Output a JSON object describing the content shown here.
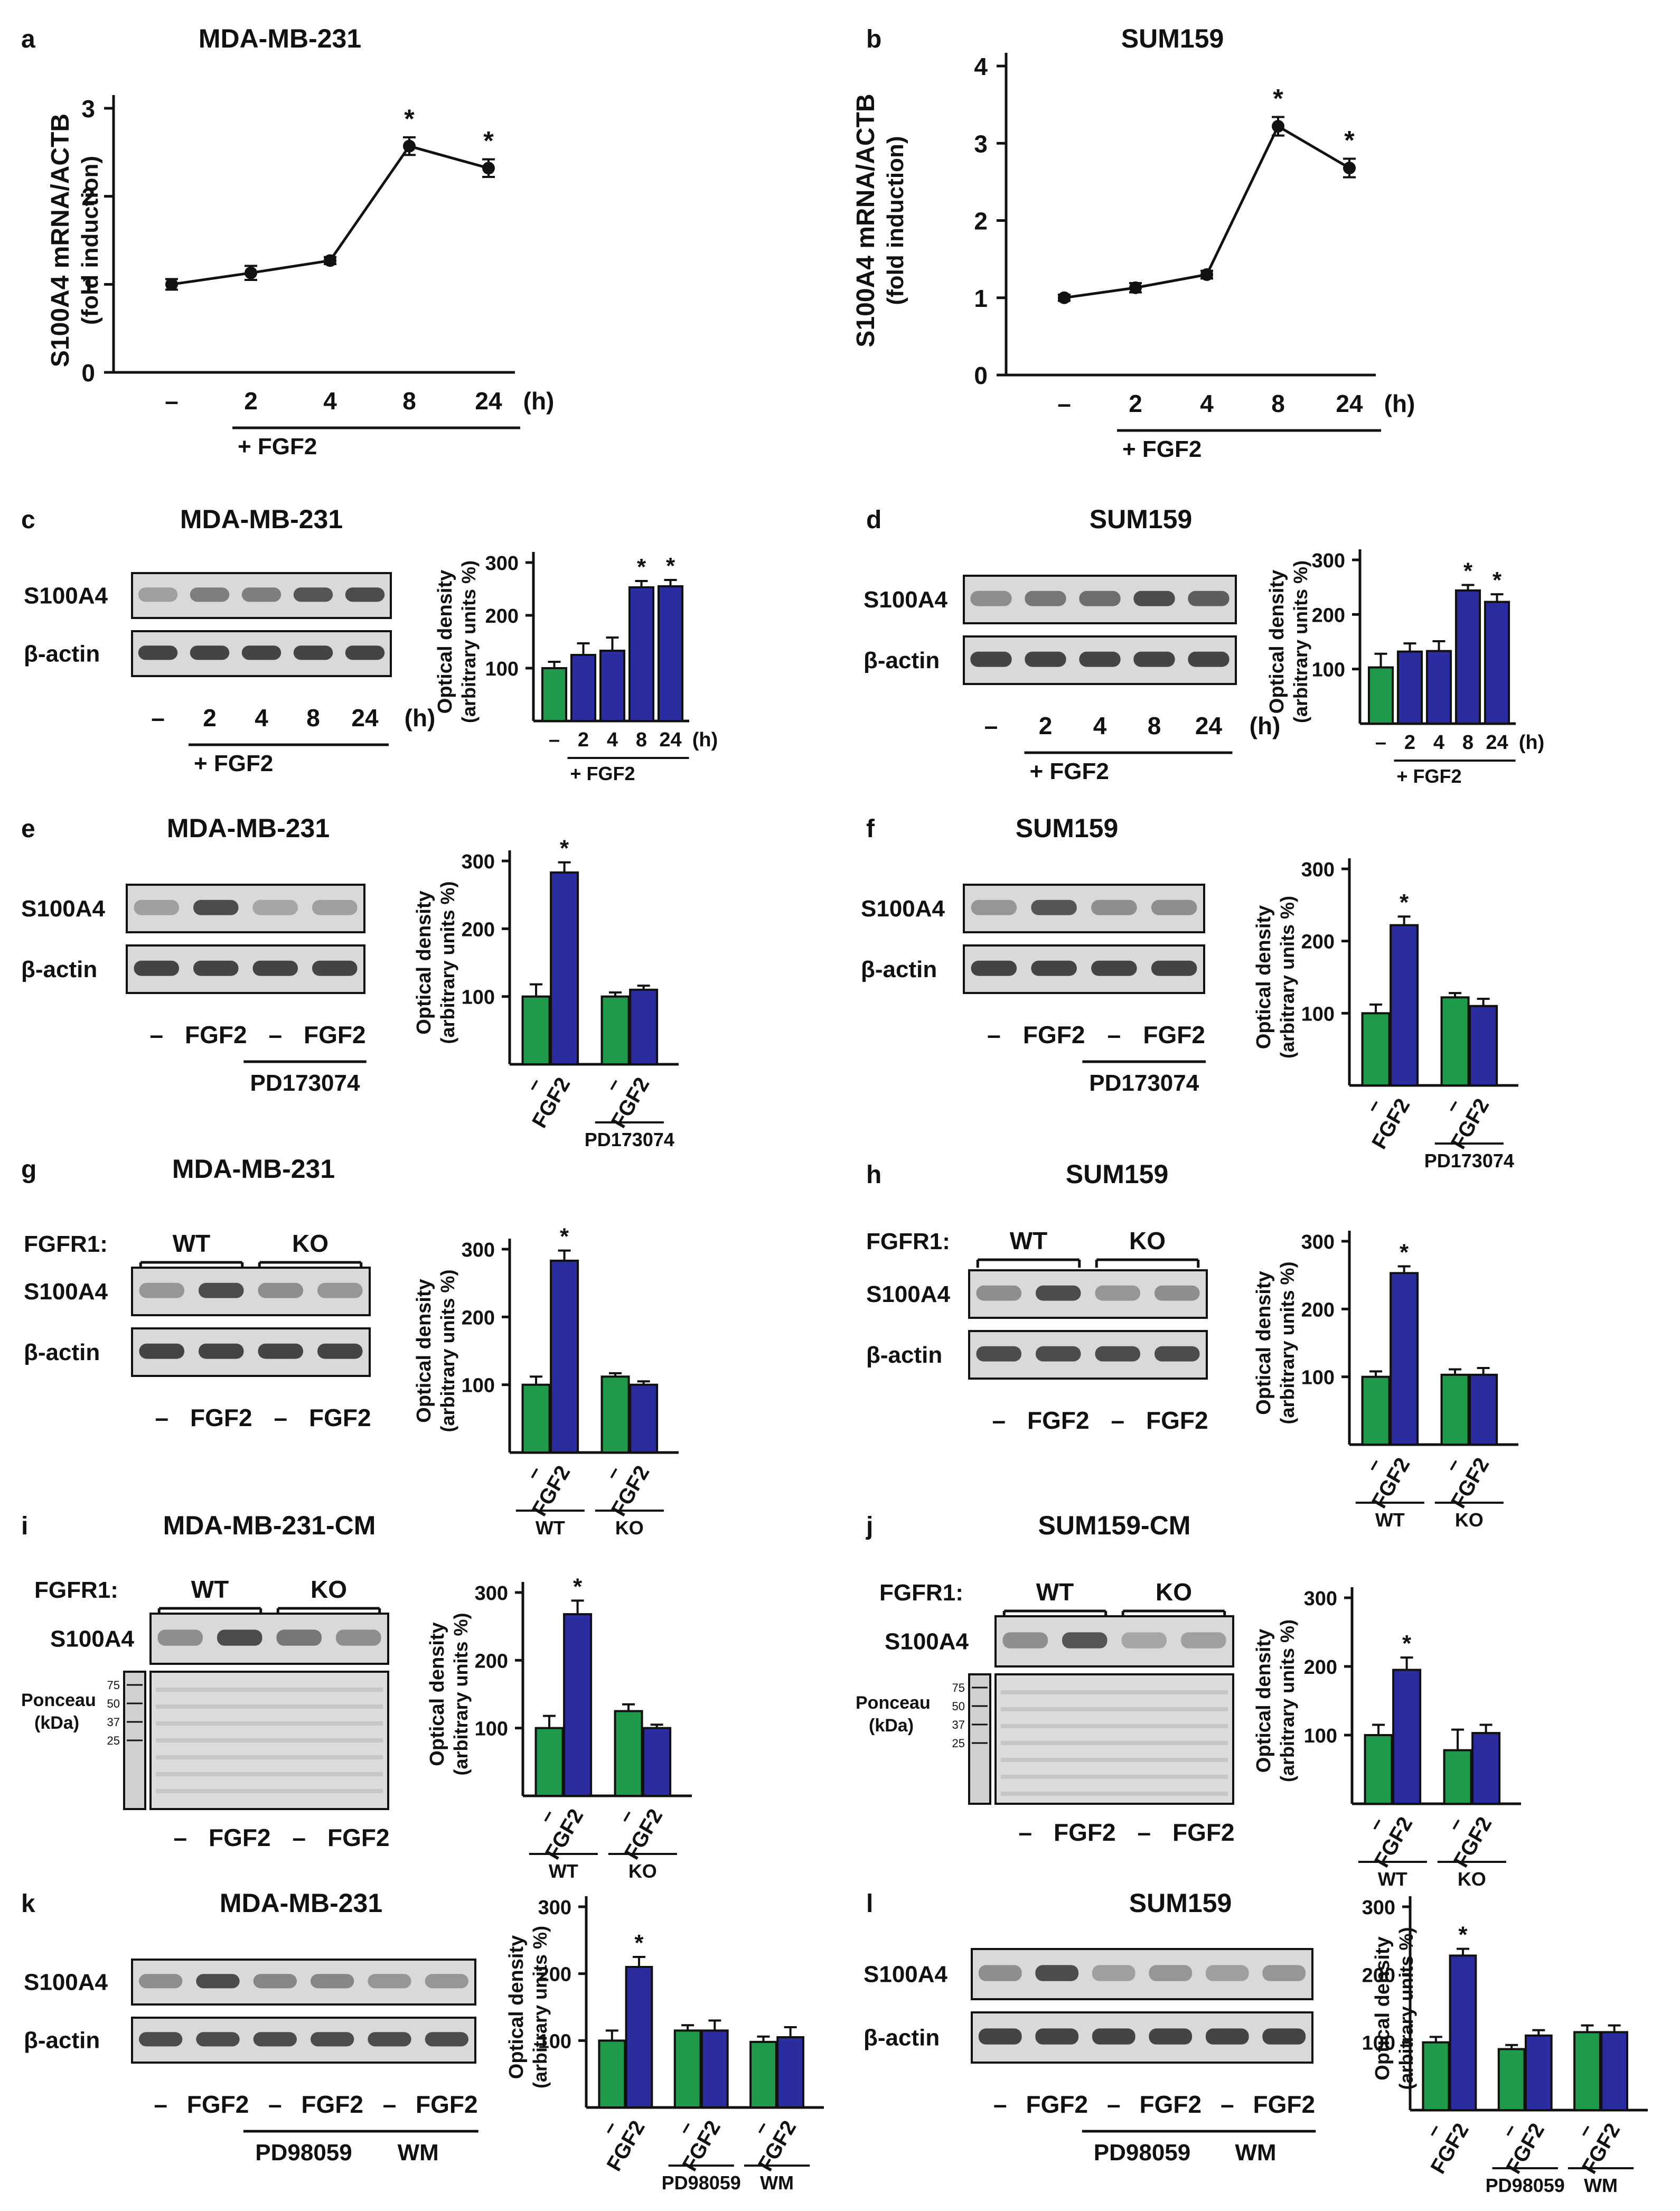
{
  "figure": {
    "colors": {
      "control": "#1f9a4a",
      "fgf2": "#2b2ca0",
      "axis": "#111111",
      "blot_bg": "#d9d9d9",
      "band": "#333333"
    },
    "time_axis_unit": "(h)",
    "fgf2_label": "+ FGF2",
    "dash": "–"
  },
  "chart_data": [
    {
      "panel": "a",
      "type": "line",
      "title": "MDA-MB-231",
      "ylabel": "S100A4 mRNA/ACTB",
      "ylabel2": "(fold induction)",
      "categories": [
        "–",
        "2",
        "4",
        "8",
        "24"
      ],
      "values": [
        1.0,
        1.13,
        1.27,
        2.57,
        2.32
      ],
      "errors": [
        0.06,
        0.08,
        0.04,
        0.1,
        0.1
      ],
      "significant": [
        false,
        false,
        false,
        true,
        true
      ],
      "ylim": [
        0,
        3
      ],
      "yticks": [
        0,
        1,
        2,
        3
      ],
      "group_label": "+ FGF2",
      "unit": "(h)"
    },
    {
      "panel": "b",
      "type": "line",
      "title": "SUM159",
      "ylabel": "S100A4 mRNA/ACTB",
      "ylabel2": "(fold induction)",
      "categories": [
        "–",
        "2",
        "4",
        "8",
        "24"
      ],
      "values": [
        1.0,
        1.13,
        1.3,
        3.22,
        2.68
      ],
      "errors": [
        0.04,
        0.06,
        0.05,
        0.12,
        0.12
      ],
      "significant": [
        false,
        false,
        false,
        true,
        true
      ],
      "ylim": [
        0,
        4
      ],
      "yticks": [
        0,
        1,
        2,
        3,
        4
      ],
      "group_label": "+ FGF2",
      "unit": "(h)"
    },
    {
      "panel": "c",
      "type": "bar",
      "title": "MDA-MB-231",
      "ylabel": "Optical density",
      "ylabel2": "(arbitrary units %)",
      "categories": [
        "–",
        "2",
        "4",
        "8",
        "24"
      ],
      "values": [
        100,
        125,
        133,
        253,
        255
      ],
      "errors": [
        12,
        22,
        25,
        12,
        12
      ],
      "treated": [
        false,
        true,
        true,
        true,
        true
      ],
      "significant": [
        false,
        false,
        false,
        true,
        true
      ],
      "ylim": [
        0,
        300
      ],
      "yticks": [
        100,
        200,
        300
      ],
      "unit": "(h)",
      "group_label": "+ FGF2"
    },
    {
      "panel": "d",
      "type": "bar",
      "title": "SUM159",
      "ylabel": "Optical density",
      "ylabel2": "(arbitrary units %)",
      "categories": [
        "–",
        "2",
        "4",
        "8",
        "24"
      ],
      "values": [
        103,
        132,
        133,
        244,
        223
      ],
      "errors": [
        25,
        15,
        18,
        10,
        14
      ],
      "treated": [
        false,
        true,
        true,
        true,
        true
      ],
      "significant": [
        false,
        false,
        false,
        true,
        true
      ],
      "ylim": [
        0,
        300
      ],
      "yticks": [
        100,
        200,
        300
      ],
      "unit": "(h)",
      "group_label": "+ FGF2"
    },
    {
      "panel": "e",
      "type": "bar",
      "title": "MDA-MB-231",
      "ylabel": "Optical density",
      "ylabel2": "(arbitrary units %)",
      "categories": [
        "–",
        "FGF2",
        "–",
        "FGF2"
      ],
      "values": [
        100,
        283,
        100,
        110
      ],
      "errors": [
        18,
        15,
        6,
        6
      ],
      "treated": [
        false,
        true,
        false,
        true
      ],
      "significant": [
        false,
        true,
        false,
        false
      ],
      "ylim": [
        0,
        300
      ],
      "yticks": [
        100,
        200,
        300
      ],
      "groups": [
        {
          "label": "PD173074",
          "from": 2,
          "to": 3
        }
      ]
    },
    {
      "panel": "f",
      "type": "bar",
      "title": "SUM159",
      "ylabel": "Optical density",
      "ylabel2": "(arbitrary units %)",
      "categories": [
        "–",
        "FGF2",
        "–",
        "FGF2"
      ],
      "values": [
        100,
        222,
        122,
        110
      ],
      "errors": [
        12,
        12,
        6,
        10
      ],
      "treated": [
        false,
        true,
        false,
        true
      ],
      "significant": [
        false,
        true,
        false,
        false
      ],
      "ylim": [
        0,
        300
      ],
      "yticks": [
        100,
        200,
        300
      ],
      "groups": [
        {
          "label": "PD173074",
          "from": 2,
          "to": 3
        }
      ]
    },
    {
      "panel": "g",
      "type": "bar",
      "title": "MDA-MB-231",
      "ylabel": "Optical density",
      "ylabel2": "(arbitrary units %)",
      "categories": [
        "–",
        "FGF2",
        "–",
        "FGF2"
      ],
      "values": [
        100,
        283,
        112,
        100
      ],
      "errors": [
        12,
        15,
        5,
        5
      ],
      "treated": [
        false,
        true,
        false,
        true
      ],
      "significant": [
        false,
        true,
        false,
        false
      ],
      "ylim": [
        0,
        300
      ],
      "yticks": [
        100,
        200,
        300
      ],
      "groups": [
        {
          "label": "WT",
          "from": 0,
          "to": 1
        },
        {
          "label": "KO",
          "from": 2,
          "to": 3
        }
      ]
    },
    {
      "panel": "h",
      "type": "bar",
      "title": "SUM159",
      "ylabel": "Optical density",
      "ylabel2": "(arbitrary units %)",
      "categories": [
        "–",
        "FGF2",
        "–",
        "FGF2"
      ],
      "values": [
        100,
        253,
        103,
        103
      ],
      "errors": [
        8,
        10,
        8,
        10
      ],
      "treated": [
        false,
        true,
        false,
        true
      ],
      "significant": [
        false,
        true,
        false,
        false
      ],
      "ylim": [
        0,
        300
      ],
      "yticks": [
        100,
        200,
        300
      ],
      "groups": [
        {
          "label": "WT",
          "from": 0,
          "to": 1
        },
        {
          "label": "KO",
          "from": 2,
          "to": 3
        }
      ]
    },
    {
      "panel": "i",
      "type": "bar",
      "title": "MDA-MB-231-CM",
      "ylabel": "Optical density",
      "ylabel2": "(arbitrary units %)",
      "categories": [
        "–",
        "FGF2",
        "–",
        "FGF2"
      ],
      "values": [
        100,
        268,
        125,
        100
      ],
      "errors": [
        18,
        20,
        10,
        5
      ],
      "treated": [
        false,
        true,
        false,
        true
      ],
      "significant": [
        false,
        true,
        false,
        false
      ],
      "ylim": [
        0,
        300
      ],
      "yticks": [
        100,
        200,
        300
      ],
      "groups": [
        {
          "label": "WT",
          "from": 0,
          "to": 1
        },
        {
          "label": "KO",
          "from": 2,
          "to": 3
        }
      ]
    },
    {
      "panel": "j",
      "type": "bar",
      "title": "SUM159-CM",
      "ylabel": "Optical density",
      "ylabel2": "(arbitrary units %)",
      "categories": [
        "–",
        "FGF2",
        "–",
        "FGF2"
      ],
      "values": [
        100,
        195,
        78,
        103
      ],
      "errors": [
        15,
        18,
        30,
        12
      ],
      "treated": [
        false,
        true,
        false,
        true
      ],
      "significant": [
        false,
        true,
        false,
        false
      ],
      "ylim": [
        0,
        300
      ],
      "yticks": [
        100,
        200,
        300
      ],
      "groups": [
        {
          "label": "WT",
          "from": 0,
          "to": 1
        },
        {
          "label": "KO",
          "from": 2,
          "to": 3
        }
      ]
    },
    {
      "panel": "k",
      "type": "bar",
      "title": "MDA-MB-231",
      "ylabel": "Optical density",
      "ylabel2": "(arbitrary units %)",
      "categories": [
        "–",
        "FGF2",
        "–",
        "FGF2",
        "–",
        "FGF2"
      ],
      "values": [
        100,
        210,
        115,
        115,
        98,
        105
      ],
      "errors": [
        15,
        15,
        8,
        15,
        8,
        15
      ],
      "treated": [
        false,
        true,
        false,
        true,
        false,
        true
      ],
      "significant": [
        false,
        true,
        false,
        false,
        false,
        false
      ],
      "ylim": [
        0,
        300
      ],
      "yticks": [
        100,
        200,
        300
      ],
      "groups": [
        {
          "label": "PD98059",
          "from": 2,
          "to": 3
        },
        {
          "label": "WM",
          "from": 4,
          "to": 5
        }
      ]
    },
    {
      "panel": "l",
      "type": "bar",
      "title": "SUM159",
      "ylabel": "Optical density",
      "ylabel2": "(arbitrary units %)",
      "categories": [
        "–",
        "FGF2",
        "–",
        "FGF2",
        "–",
        "FGF2"
      ],
      "values": [
        100,
        228,
        90,
        110,
        115,
        115
      ],
      "errors": [
        8,
        10,
        6,
        8,
        10,
        10
      ],
      "treated": [
        false,
        true,
        false,
        true,
        false,
        true
      ],
      "significant": [
        false,
        true,
        false,
        false,
        false,
        false
      ],
      "ylim": [
        0,
        300
      ],
      "yticks": [
        100,
        200,
        300
      ],
      "groups": [
        {
          "label": "PD98059",
          "from": 2,
          "to": 3
        },
        {
          "label": "WM",
          "from": 4,
          "to": 5
        }
      ]
    }
  ],
  "blots": [
    {
      "panel": "c",
      "title": "MDA-MB-231",
      "rows": [
        "S100A4",
        "β-actin"
      ],
      "band_intensity": [
        [
          0.35,
          0.55,
          0.55,
          0.8,
          0.85
        ],
        [
          0.9,
          0.9,
          0.9,
          0.9,
          0.9
        ]
      ],
      "lanes": [
        "–",
        "2",
        "4",
        "8",
        "24"
      ],
      "unit": "(h)",
      "group_label": "+ FGF2"
    },
    {
      "panel": "d",
      "title": "SUM159",
      "rows": [
        "S100A4",
        "β-actin"
      ],
      "band_intensity": [
        [
          0.45,
          0.6,
          0.65,
          0.85,
          0.75
        ],
        [
          0.9,
          0.9,
          0.9,
          0.9,
          0.9
        ]
      ],
      "lanes": [
        "–",
        "2",
        "4",
        "8",
        "24"
      ],
      "unit": "(h)",
      "group_label": "+ FGF2"
    },
    {
      "panel": "e",
      "title": "MDA-MB-231",
      "rows": [
        "S100A4",
        "β-actin"
      ],
      "band_intensity": [
        [
          0.35,
          0.85,
          0.3,
          0.35
        ],
        [
          0.9,
          0.9,
          0.9,
          0.9
        ]
      ],
      "lanes": [
        "–",
        "FGF2",
        "–",
        "FGF2"
      ],
      "groups": [
        {
          "label": "PD173074",
          "from": 2,
          "to": 3
        }
      ]
    },
    {
      "panel": "f",
      "title": "SUM159",
      "rows": [
        "S100A4",
        "β-actin"
      ],
      "band_intensity": [
        [
          0.4,
          0.8,
          0.45,
          0.45
        ],
        [
          0.9,
          0.9,
          0.9,
          0.9
        ]
      ],
      "lanes": [
        "–",
        "FGF2",
        "–",
        "FGF2"
      ],
      "groups": [
        {
          "label": "PD173074",
          "from": 2,
          "to": 3
        }
      ]
    },
    {
      "panel": "g",
      "title": "MDA-MB-231",
      "top_label": "FGFR1:",
      "top_groups": [
        "WT",
        "KO"
      ],
      "rows": [
        "S100A4",
        "β-actin"
      ],
      "band_intensity": [
        [
          0.4,
          0.85,
          0.45,
          0.4
        ],
        [
          0.9,
          0.9,
          0.9,
          0.9
        ]
      ],
      "lanes": [
        "–",
        "FGF2",
        "–",
        "FGF2"
      ]
    },
    {
      "panel": "h",
      "title": "SUM159",
      "top_label": "FGFR1:",
      "top_groups": [
        "WT",
        "KO"
      ],
      "rows": [
        "S100A4",
        "β-actin"
      ],
      "band_intensity": [
        [
          0.45,
          0.85,
          0.4,
          0.45
        ],
        [
          0.85,
          0.85,
          0.85,
          0.85
        ]
      ],
      "lanes": [
        "–",
        "FGF2",
        "–",
        "FGF2"
      ]
    },
    {
      "panel": "i",
      "title": "MDA-MB-231-CM",
      "top_label": "FGFR1:",
      "top_groups": [
        "WT",
        "KO"
      ],
      "rows": [
        "S100A4"
      ],
      "band_intensity": [
        [
          0.45,
          0.85,
          0.6,
          0.45
        ]
      ],
      "ponceau_label": "Ponceau",
      "ponceau_unit": "(kDa)",
      "markers": [
        "75",
        "50",
        "37",
        "25"
      ],
      "lanes": [
        "–",
        "FGF2",
        "–",
        "FGF2"
      ]
    },
    {
      "panel": "j",
      "title": "SUM159-CM",
      "top_label": "FGFR1:",
      "top_groups": [
        "WT",
        "KO"
      ],
      "rows": [
        "S100A4"
      ],
      "band_intensity": [
        [
          0.45,
          0.8,
          0.3,
          0.35
        ]
      ],
      "ponceau_label": "Ponceau",
      "ponceau_unit": "(kDa)",
      "markers": [
        "75",
        "50",
        "37",
        "25"
      ],
      "lanes": [
        "–",
        "FGF2",
        "–",
        "FGF2"
      ]
    },
    {
      "panel": "k",
      "title": "MDA-MB-231",
      "rows": [
        "S100A4",
        "β-actin"
      ],
      "band_intensity": [
        [
          0.45,
          0.85,
          0.5,
          0.5,
          0.4,
          0.4
        ],
        [
          0.85,
          0.85,
          0.85,
          0.85,
          0.85,
          0.85
        ]
      ],
      "lanes": [
        "–",
        "FGF2",
        "–",
        "FGF2",
        "–",
        "FGF2"
      ],
      "groups": [
        {
          "label": "PD98059",
          "from": 2,
          "to": 3
        },
        {
          "label": "WM",
          "from": 4,
          "to": 5
        }
      ]
    },
    {
      "panel": "l",
      "title": "SUM159",
      "rows": [
        "S100A4",
        "β-actin"
      ],
      "band_intensity": [
        [
          0.45,
          0.85,
          0.35,
          0.4,
          0.35,
          0.4
        ],
        [
          0.9,
          0.9,
          0.9,
          0.9,
          0.9,
          0.9
        ]
      ],
      "lanes": [
        "–",
        "FGF2",
        "–",
        "FGF2",
        "–",
        "FGF2"
      ],
      "groups": [
        {
          "label": "PD98059",
          "from": 2,
          "to": 3
        },
        {
          "label": "WM",
          "from": 4,
          "to": 5
        }
      ]
    }
  ]
}
